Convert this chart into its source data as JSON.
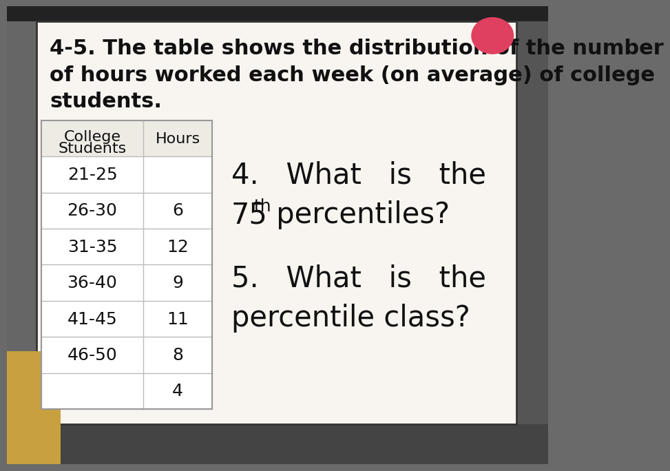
{
  "title_line1": "4-5. The table shows the distribution of the number",
  "title_line2": "of hours worked each week (on average) of college",
  "title_line3": "students.",
  "col1_header_line1": "College",
  "col1_header_line2": "Students",
  "col2_header": "Hours",
  "rows": [
    [
      "21-25",
      ""
    ],
    [
      "26-30",
      "6"
    ],
    [
      "31-35",
      "12"
    ],
    [
      "36-40",
      "9"
    ],
    [
      "41-45",
      "11"
    ],
    [
      "46-50",
      "8"
    ],
    [
      "",
      "4"
    ]
  ],
  "q4_line1": "4.  What  is  the",
  "q4_line2_num": "75",
  "q4_line2_sup": "th",
  "q4_line2_rest": " percentiles?",
  "q5_line1": "5.  What  is  the",
  "q5_line2": "percentile class?",
  "text_color": "#111111",
  "outer_bg_top": "#888888",
  "outer_bg_bottom": "#444444",
  "slide_bg": "#f5f2ee",
  "table_bg": "#ffffff",
  "table_border": "#bbbbbb"
}
